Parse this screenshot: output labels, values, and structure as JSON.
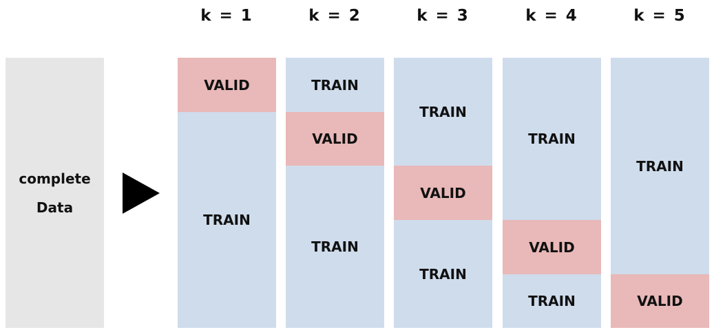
{
  "data_block": {
    "line1": "complete",
    "line2": "Data"
  },
  "colors": {
    "train": "#cfdcec",
    "valid": "#e9b8b8",
    "data": "#e6e6e6"
  },
  "arrow_icon": "play-arrow-icon",
  "folds": [
    {
      "header": "k = 1",
      "segments": [
        {
          "kind": "valid",
          "label": "VALID"
        },
        {
          "kind": "train",
          "label": "TRAIN"
        }
      ]
    },
    {
      "header": "k = 2",
      "segments": [
        {
          "kind": "train",
          "label": "TRAIN"
        },
        {
          "kind": "valid",
          "label": "VALID"
        },
        {
          "kind": "train",
          "label": "TRAIN"
        }
      ]
    },
    {
      "header": "k = 3",
      "segments": [
        {
          "kind": "train",
          "label": "TRAIN"
        },
        {
          "kind": "valid",
          "label": "VALID"
        },
        {
          "kind": "train",
          "label": "TRAIN"
        }
      ]
    },
    {
      "header": "k = 4",
      "segments": [
        {
          "kind": "train",
          "label": "TRAIN"
        },
        {
          "kind": "valid",
          "label": "VALID"
        },
        {
          "kind": "train",
          "label": "TRAIN"
        }
      ]
    },
    {
      "header": "k = 5",
      "segments": [
        {
          "kind": "train",
          "label": "TRAIN"
        },
        {
          "kind": "valid",
          "label": "VALID"
        }
      ]
    }
  ]
}
